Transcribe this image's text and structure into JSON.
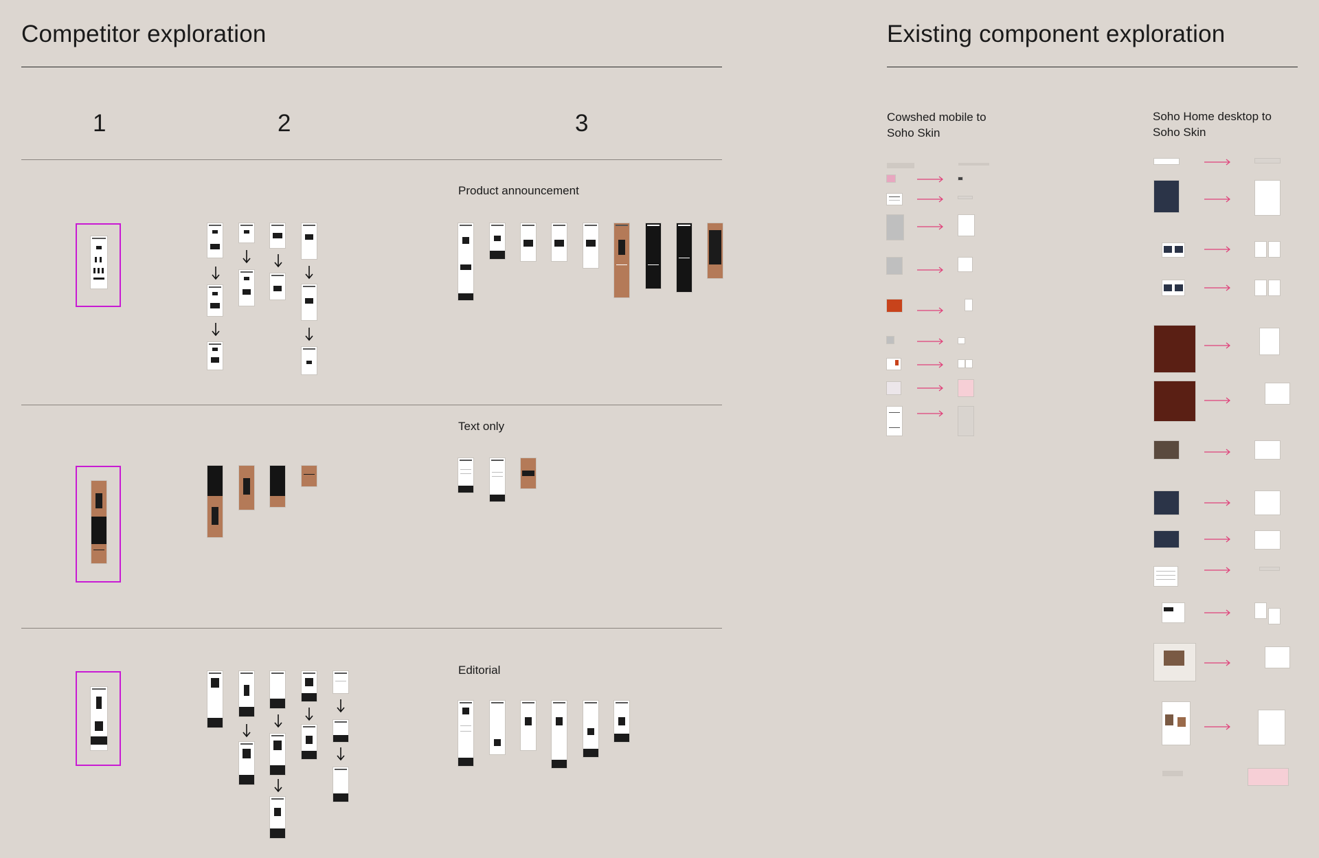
{
  "left_section": {
    "title": "Competitor exploration",
    "columns": [
      "1",
      "2",
      "3"
    ]
  },
  "right_section": {
    "title": "Existing component exploration",
    "col_a": "Cowshed mobile to Soho Skin",
    "col_b": "Soho Home desktop to Soho Skin"
  },
  "rows": {
    "product": "Product announcement",
    "text": "Text only",
    "editorial": "Editorial"
  },
  "colors": {
    "background": "#dcd6d0",
    "selection": "#c81ad3",
    "arrow_pink": "#e0417a",
    "terracotta": "#b47a58"
  },
  "icons": [
    "down-arrow-icon",
    "right-arrow-icon"
  ]
}
